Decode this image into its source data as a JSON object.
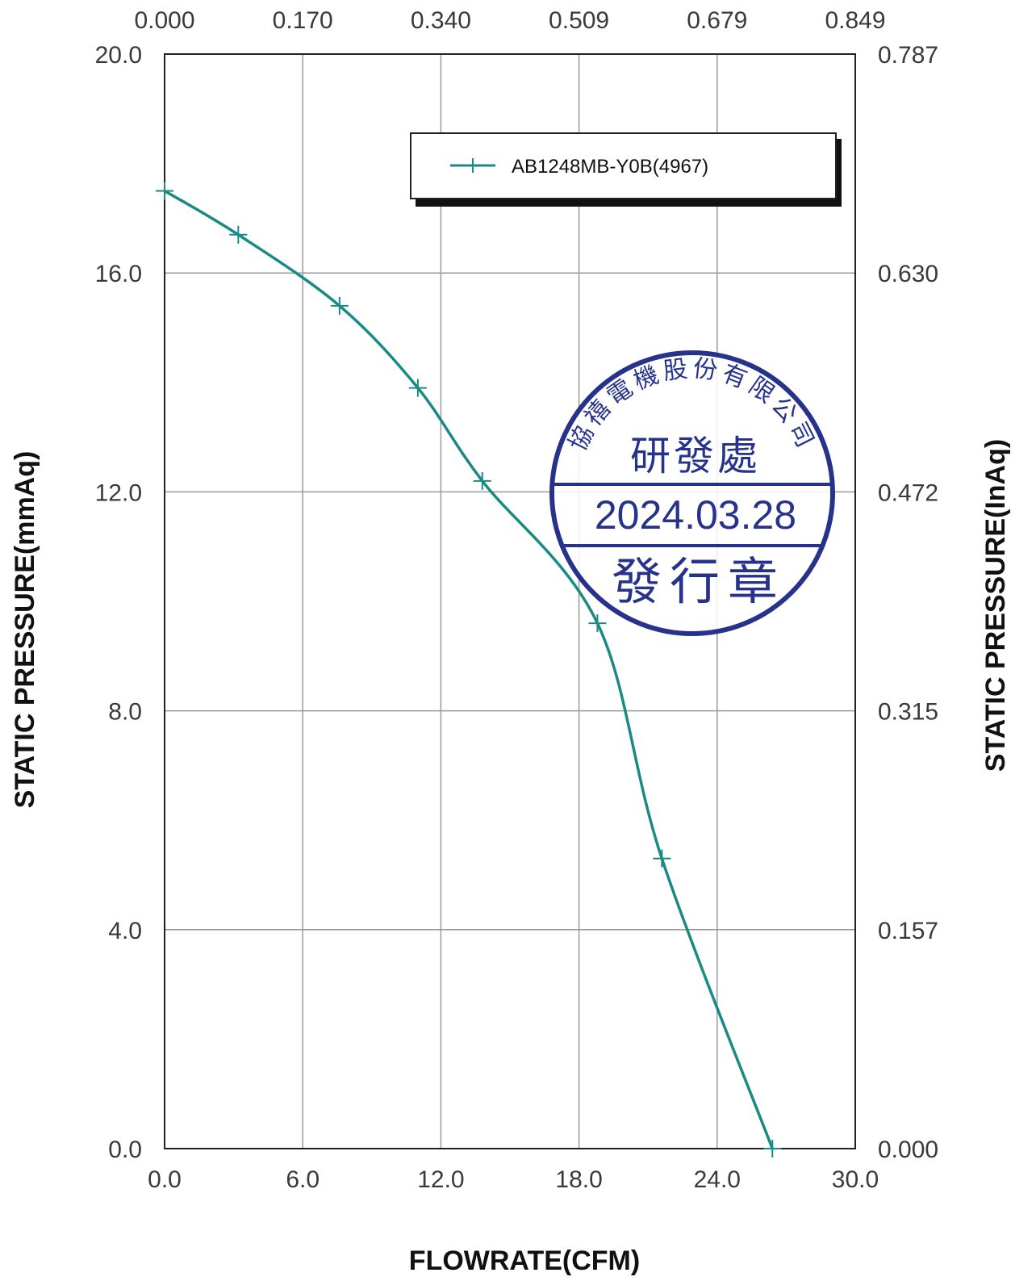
{
  "chart_data": {
    "type": "line",
    "xlabel": "FLOWRATE(CFM)",
    "ylabel": "STATIC PRESSURE(mmAq)",
    "ylabel_right": "STATIC PRESSURE(InAq)",
    "xlim": [
      0,
      30
    ],
    "ylim": [
      0,
      20
    ],
    "grid": true,
    "legend_position": "top-right",
    "x_ticks": [
      "0.0",
      "6.0",
      "12.0",
      "18.0",
      "24.0",
      "30.0"
    ],
    "x_ticks_top": [
      "0.000",
      "0.170",
      "0.340",
      "0.509",
      "0.679",
      "0.849"
    ],
    "y_ticks": [
      "0.0",
      "4.0",
      "8.0",
      "12.0",
      "16.0",
      "20.0"
    ],
    "y_ticks_right": [
      "0.000",
      "0.157",
      "0.315",
      "0.472",
      "0.630",
      "0.787"
    ],
    "series": [
      {
        "name": "AB1248MB-Y0B(4967)",
        "color": "#1a8a84",
        "x": [
          0.0,
          3.2,
          7.6,
          11.0,
          13.8,
          18.8,
          21.6,
          26.4
        ],
        "y": [
          17.5,
          16.7,
          15.4,
          13.9,
          12.2,
          9.6,
          5.3,
          0.0
        ]
      }
    ]
  },
  "stamp": {
    "color": "#27338a",
    "company": "協禧電機股份有限公司",
    "department": "研發處",
    "date": "2024.03.28",
    "purpose": "發行章"
  }
}
